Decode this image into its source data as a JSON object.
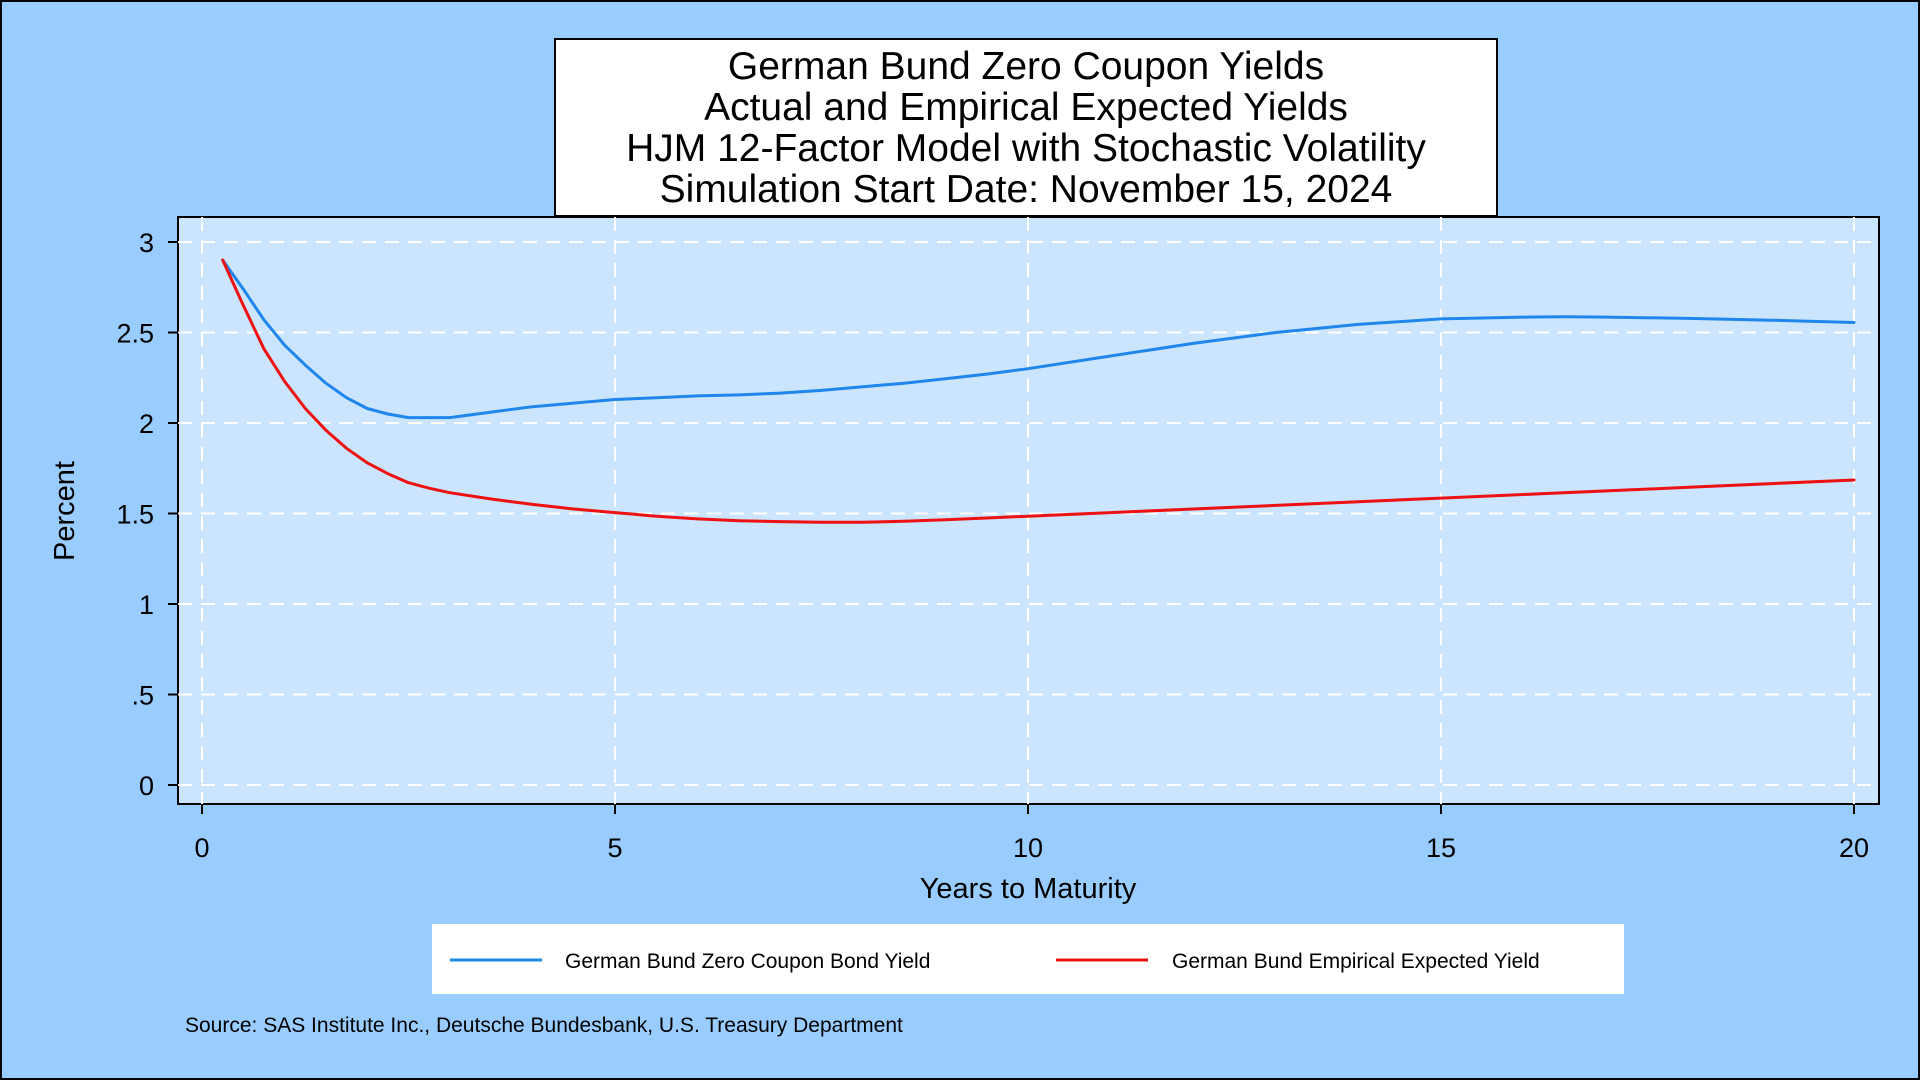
{
  "colors": {
    "page_background": "#99ccff",
    "plot_background": "#cce5ff",
    "grid": "#ffffff",
    "series_actual": "#1e86ec",
    "series_expected": "#ee1111"
  },
  "chart_data": {
    "type": "line",
    "title_lines": [
      "German Bund Zero Coupon Yields",
      "Actual and Empirical Expected Yields",
      "HJM 12-Factor Model with Stochastic Volatility",
      "Simulation Start Date: November 15, 2024"
    ],
    "xlabel": "Years to Maturity",
    "ylabel": "Percent",
    "xlim": [
      0,
      20
    ],
    "ylim": [
      0,
      3
    ],
    "xticks": [
      0,
      5,
      10,
      15,
      20
    ],
    "xtick_labels": [
      "0",
      "5",
      "10",
      "15",
      "20"
    ],
    "yticks": [
      0,
      0.5,
      1,
      1.5,
      2,
      2.5,
      3
    ],
    "ytick_labels": [
      "0",
      ".5",
      "1",
      "1.5",
      "2",
      "2.5",
      "3"
    ],
    "grid": true,
    "grid_style": "dashed",
    "legend_position": "bottom",
    "series": [
      {
        "name": "German Bund Zero Coupon Bond Yield",
        "color": "#1e86ec",
        "x": [
          0.25,
          0.5,
          0.75,
          1.0,
          1.25,
          1.5,
          1.75,
          2.0,
          2.25,
          2.5,
          2.75,
          3.0,
          3.5,
          4.0,
          4.5,
          5.0,
          5.5,
          6.0,
          6.5,
          7.0,
          7.5,
          8.0,
          8.5,
          9.0,
          9.5,
          10.0,
          11.0,
          12.0,
          13.0,
          14.0,
          15.0,
          16.0,
          16.5,
          17.0,
          18.0,
          19.0,
          20.0
        ],
        "y": [
          2.9,
          2.74,
          2.57,
          2.43,
          2.32,
          2.22,
          2.14,
          2.08,
          2.05,
          2.03,
          2.03,
          2.03,
          2.06,
          2.09,
          2.11,
          2.13,
          2.14,
          2.15,
          2.155,
          2.165,
          2.18,
          2.2,
          2.22,
          2.245,
          2.27,
          2.3,
          2.37,
          2.44,
          2.5,
          2.545,
          2.575,
          2.585,
          2.587,
          2.585,
          2.578,
          2.568,
          2.555
        ]
      },
      {
        "name": "German Bund Empirical Expected Yield",
        "color": "#ee1111",
        "x": [
          0.25,
          0.5,
          0.75,
          1.0,
          1.25,
          1.5,
          1.75,
          2.0,
          2.25,
          2.5,
          2.75,
          3.0,
          3.5,
          4.0,
          4.5,
          5.0,
          5.5,
          6.0,
          6.5,
          7.0,
          7.5,
          8.0,
          8.5,
          9.0,
          9.5,
          10.0,
          11.0,
          12.0,
          13.0,
          14.0,
          15.0,
          16.0,
          17.0,
          18.0,
          19.0,
          20.0
        ],
        "y": [
          2.9,
          2.65,
          2.41,
          2.23,
          2.08,
          1.96,
          1.86,
          1.78,
          1.72,
          1.67,
          1.64,
          1.615,
          1.58,
          1.55,
          1.525,
          1.505,
          1.485,
          1.47,
          1.46,
          1.455,
          1.452,
          1.452,
          1.457,
          1.465,
          1.475,
          1.485,
          1.505,
          1.525,
          1.545,
          1.565,
          1.585,
          1.605,
          1.625,
          1.645,
          1.665,
          1.685
        ]
      }
    ],
    "source": "Source: SAS Institute Inc., Deutsche Bundesbank, U.S. Treasury Department"
  }
}
